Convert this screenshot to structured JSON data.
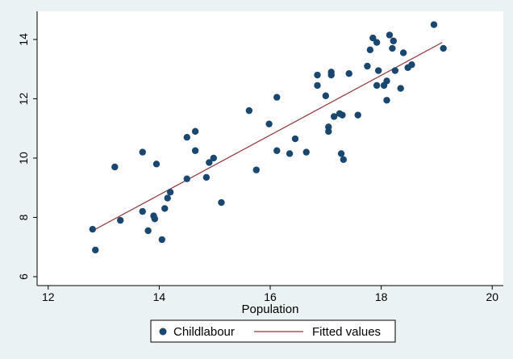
{
  "chart_data": {
    "type": "scatter",
    "xlabel": "Population",
    "ylabel": "",
    "xlim": [
      11.8,
      20.2
    ],
    "ylim": [
      5.7,
      14.95
    ],
    "xticks": [
      12,
      14,
      16,
      18,
      20
    ],
    "yticks": [
      6,
      8,
      10,
      12,
      14
    ],
    "legend_position": "bottom",
    "grid": false,
    "colors": {
      "points": "#1a476f",
      "line": "#90353b",
      "plot_background": "#ffffff",
      "outer_background": "#eaf2f3"
    },
    "series": [
      {
        "name": "Childlabour",
        "kind": "scatter",
        "points": [
          [
            12.8,
            7.6
          ],
          [
            12.85,
            6.9
          ],
          [
            13.2,
            9.7
          ],
          [
            13.3,
            7.9
          ],
          [
            13.7,
            10.2
          ],
          [
            13.7,
            8.2
          ],
          [
            13.8,
            7.55
          ],
          [
            13.9,
            8.05
          ],
          [
            13.92,
            7.95
          ],
          [
            13.95,
            9.8
          ],
          [
            14.05,
            7.25
          ],
          [
            14.1,
            8.3
          ],
          [
            14.15,
            8.65
          ],
          [
            14.2,
            8.85
          ],
          [
            14.5,
            9.3
          ],
          [
            14.5,
            10.7
          ],
          [
            14.65,
            10.9
          ],
          [
            14.65,
            10.25
          ],
          [
            14.85,
            9.35
          ],
          [
            14.9,
            9.85
          ],
          [
            14.98,
            10.0
          ],
          [
            15.12,
            8.5
          ],
          [
            15.62,
            11.6
          ],
          [
            15.75,
            9.6
          ],
          [
            15.98,
            11.15
          ],
          [
            16.12,
            12.05
          ],
          [
            16.12,
            10.25
          ],
          [
            16.35,
            10.15
          ],
          [
            16.45,
            10.65
          ],
          [
            16.65,
            10.2
          ],
          [
            16.85,
            12.8
          ],
          [
            16.85,
            12.45
          ],
          [
            17.0,
            12.1
          ],
          [
            17.05,
            11.05
          ],
          [
            17.05,
            10.9
          ],
          [
            17.1,
            12.8
          ],
          [
            17.1,
            12.9
          ],
          [
            17.15,
            11.4
          ],
          [
            17.25,
            11.5
          ],
          [
            17.3,
            11.45
          ],
          [
            17.28,
            10.15
          ],
          [
            17.32,
            9.95
          ],
          [
            17.42,
            12.85
          ],
          [
            17.58,
            11.45
          ],
          [
            17.75,
            13.1
          ],
          [
            17.8,
            13.65
          ],
          [
            17.85,
            14.05
          ],
          [
            17.92,
            13.9
          ],
          [
            17.92,
            12.45
          ],
          [
            17.95,
            12.95
          ],
          [
            18.05,
            12.45
          ],
          [
            18.1,
            12.6
          ],
          [
            18.1,
            11.95
          ],
          [
            18.15,
            14.15
          ],
          [
            18.2,
            13.7
          ],
          [
            18.22,
            13.95
          ],
          [
            18.25,
            12.95
          ],
          [
            18.35,
            12.35
          ],
          [
            18.4,
            13.55
          ],
          [
            18.48,
            13.05
          ],
          [
            18.55,
            13.15
          ],
          [
            18.95,
            14.5
          ],
          [
            19.12,
            13.7
          ]
        ]
      },
      {
        "name": "Fitted values",
        "kind": "line",
        "points": [
          [
            12.8,
            7.55
          ],
          [
            19.1,
            13.9
          ]
        ]
      }
    ]
  }
}
